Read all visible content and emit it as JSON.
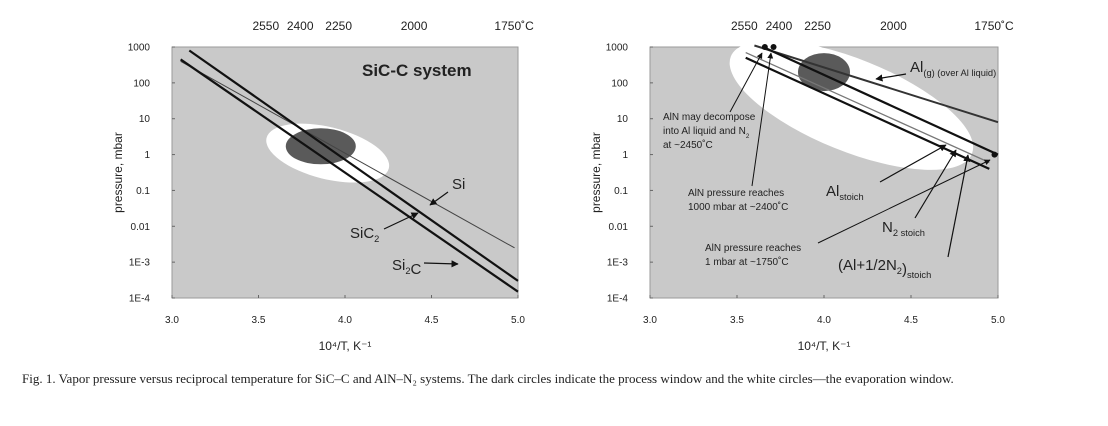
{
  "caption": "Fig. 1.  Vapor pressure versus reciprocal temperature for SiC–C and AlN–N₂ systems. The dark circles indicate the process window and the white circles—the evaporation window.",
  "chart_data": [
    {
      "type": "line",
      "title": "SiC-C system",
      "xlabel": "10⁴/T, K⁻¹",
      "ylabel": "pressure, mbar",
      "xlim": [
        3.0,
        5.0
      ],
      "ylim": [
        0.0001,
        1000
      ],
      "y_scale": "log",
      "grid": false,
      "x_ticks": [
        "3.0",
        "3.5",
        "4.0",
        "4.5",
        "5.0"
      ],
      "y_ticks": [
        "1000",
        "100",
        "10",
        "1",
        "0.1",
        "0.01",
        "1E-3",
        "1E-4"
      ],
      "top_axis_ticks": [
        "2550",
        "2400",
        "2250",
        "2000",
        "1750˚C"
      ],
      "top_axis_tick_values_c": [
        2550,
        2400,
        2250,
        2000,
        1750
      ],
      "series": [
        {
          "name": "Si",
          "x": [
            3.05,
            4.98
          ],
          "y": [
            400,
            0.0025
          ]
        },
        {
          "name": "SiC₂",
          "x": [
            3.1,
            5.0
          ],
          "y": [
            800,
            0.0003
          ]
        },
        {
          "name": "Si₂C",
          "x": [
            3.05,
            5.0
          ],
          "y": [
            450,
            0.00015
          ]
        }
      ],
      "process_window": {
        "x": 3.86,
        "y": 1.7
      },
      "evaporation_window": {
        "x": 3.9,
        "y": 1.1
      },
      "labels": {
        "si": "Si",
        "sic2": "SiC",
        "sic2_sub": "2",
        "si2c": "Si",
        "si2c_sub": "2",
        "si2c_end": "C"
      }
    },
    {
      "type": "line",
      "xlabel": "10⁴/T, K⁻¹",
      "ylabel": "pressure, mbar",
      "xlim": [
        3.0,
        5.0
      ],
      "ylim": [
        0.0001,
        1000
      ],
      "y_scale": "log",
      "grid": false,
      "x_ticks": [
        "3.0",
        "3.5",
        "4.0",
        "4.5",
        "5.0"
      ],
      "y_ticks": [
        "1000",
        "100",
        "10",
        "1",
        "0.1",
        "0.01",
        "1E-3",
        "1E-4"
      ],
      "top_axis_ticks": [
        "2550",
        "2400",
        "2250",
        "2000",
        "1750˚C"
      ],
      "top_axis_tick_values_c": [
        2550,
        2400,
        2250,
        2000,
        1750
      ],
      "series": [
        {
          "name": "Al(g) (over Al liquid)",
          "x": [
            3.6,
            5.0
          ],
          "y": [
            1100,
            8
          ]
        },
        {
          "name": "Al stoich",
          "x": [
            3.55,
            4.95
          ],
          "y": [
            500,
            0.4
          ]
        },
        {
          "name": "N₂ stoich",
          "x": [
            3.55,
            4.95
          ],
          "y": [
            700,
            0.6
          ]
        },
        {
          "name": "(Al+1/2N₂) stoich",
          "x": [
            3.65,
            5.0
          ],
          "y": [
            1000,
            1
          ]
        }
      ],
      "points": [
        {
          "x": 3.66,
          "y": 1000
        },
        {
          "x": 3.71,
          "y": 1000
        },
        {
          "x": 4.98,
          "y": 1
        }
      ],
      "process_window": {
        "x": 4.0,
        "y": 200
      },
      "evaporation_window": {
        "x": 4.1,
        "y": 40
      },
      "labels": {
        "al_gas": "Al",
        "al_gas_sub": "(g) (over Al liquid)",
        "al_stoich": "Al",
        "al_stoich_sub": "stoich",
        "n2_stoich": "N",
        "n2_stoich_sub": "2 stoich",
        "sum_stoich": "(Al+1/2N",
        "sum_stoich_sub1": "2",
        "sum_stoich_close": ")",
        "sum_stoich_sub2": "stoich",
        "decompose": [
          "AlN may decompose",
          "into Al liquid and N",
          "at ~2450˚C"
        ],
        "decompose_sub": "2",
        "reach_1000": [
          "AlN pressure reaches",
          "1000 mbar at ~2400˚C"
        ],
        "reach_1": [
          "AlN pressure reaches",
          "1 mbar at ~1750˚C"
        ]
      }
    }
  ]
}
